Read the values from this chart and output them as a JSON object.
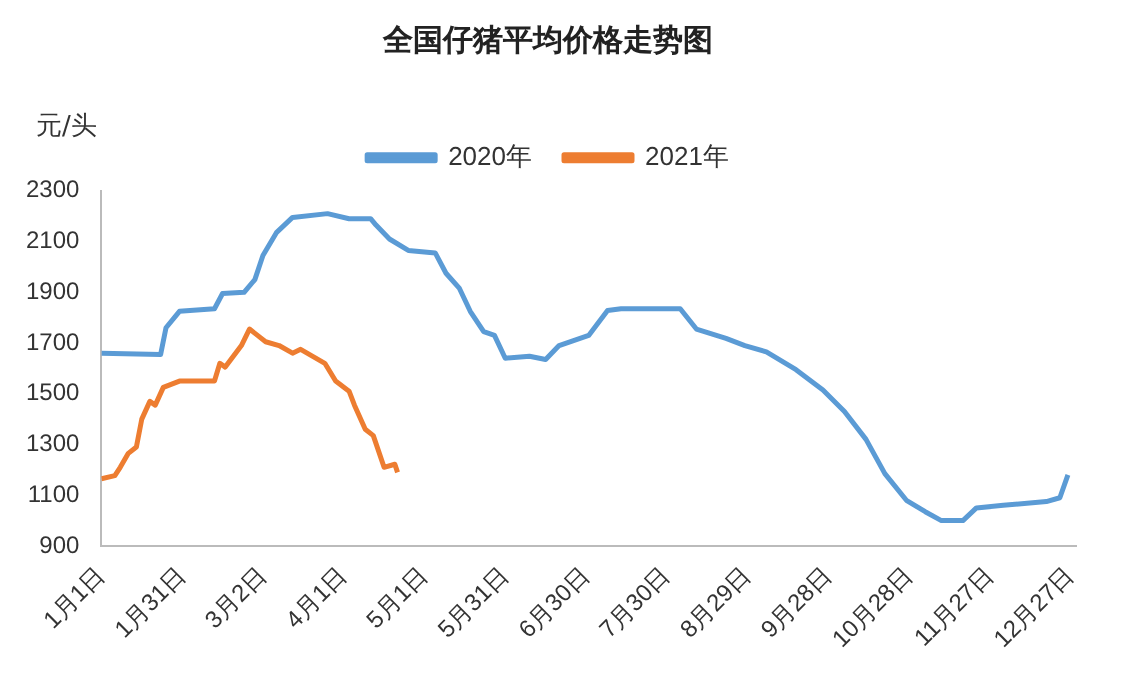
{
  "chart_data": {
    "type": "line",
    "title": "全国仔猪平均价格走势图",
    "ylabel": "元/头",
    "legend": "top",
    "grid": false,
    "marker": "none",
    "line_style": "solid",
    "xlim": [
      "--01-01",
      "--12-29"
    ],
    "xticks": [
      {
        "value": "--01-01",
        "label": "1月1日"
      },
      {
        "value": "--01-31",
        "label": "1月31日"
      },
      {
        "value": "--03-02",
        "label": "3月2日"
      },
      {
        "value": "--04-01",
        "label": "4月1日"
      },
      {
        "value": "--05-01",
        "label": "5月1日"
      },
      {
        "value": "--05-31",
        "label": "5月31日"
      },
      {
        "value": "--06-30",
        "label": "6月30日"
      },
      {
        "value": "--07-30",
        "label": "7月30日"
      },
      {
        "value": "--08-29",
        "label": "8月29日"
      },
      {
        "value": "--09-28",
        "label": "9月28日"
      },
      {
        "value": "--10-28",
        "label": "10月28日"
      },
      {
        "value": "--11-27",
        "label": "11月27日"
      },
      {
        "value": "--12-27",
        "label": "12月27日"
      }
    ],
    "ylim": [
      900,
      2300
    ],
    "yticks": [
      900,
      1100,
      1300,
      1500,
      1700,
      1900,
      2100,
      2300
    ],
    "series": [
      {
        "name": "2020年",
        "color": "#5b9bd5",
        "x": [
          "--01-01",
          "--01-23",
          "--01-25",
          "--01-30",
          "--02-12",
          "--02-15",
          "--02-23",
          "--02-27",
          "--03-02",
          "--03-07",
          "--03-13",
          "--03-26",
          "--04-03",
          "--04-11",
          "--04-13",
          "--04-18",
          "--04-25",
          "--05-05",
          "--05-09",
          "--05-14",
          "--05-18",
          "--05-23",
          "--05-27",
          "--05-31",
          "--06-09",
          "--06-15",
          "--06-20",
          "--07-01",
          "--07-08",
          "--07-13",
          "--08-04",
          "--08-10",
          "--08-21",
          "--08-28",
          "--09-05",
          "--09-16",
          "--09-26",
          "--10-04",
          "--10-12",
          "--10-19",
          "--10-27",
          "--11-03",
          "--11-09",
          "--11-17",
          "--11-22",
          "--12-02",
          "--12-18",
          "--12-23",
          "--12-26"
        ],
        "values": [
          1660,
          1655,
          1760,
          1825,
          1835,
          1895,
          1900,
          1950,
          2045,
          2135,
          2195,
          2210,
          2190,
          2190,
          2165,
          2110,
          2065,
          2055,
          1975,
          1915,
          1825,
          1745,
          1730,
          1640,
          1648,
          1635,
          1690,
          1730,
          1828,
          1835,
          1835,
          1755,
          1718,
          1690,
          1665,
          1595,
          1515,
          1430,
          1320,
          1185,
          1080,
          1035,
          1000,
          1000,
          1050,
          1060,
          1075,
          1090,
          1180
        ]
      },
      {
        "name": "2021年",
        "color": "#ed7d31",
        "x": [
          "--01-01",
          "--01-06",
          "--01-08",
          "--01-11",
          "--01-14",
          "--01-16",
          "--01-19",
          "--01-21",
          "--01-24",
          "--01-30",
          "--02-12",
          "--02-14",
          "--02-16",
          "--02-22",
          "--02-25",
          "--02-28",
          "--03-03",
          "--03-08",
          "--03-13",
          "--03-16",
          "--03-25",
          "--03-29",
          "--04-03",
          "--04-05",
          "--04-09",
          "--04-12",
          "--04-16",
          "--04-20",
          "--04-21"
        ],
        "values": [
          1165,
          1177,
          1210,
          1265,
          1290,
          1400,
          1470,
          1455,
          1525,
          1550,
          1550,
          1620,
          1605,
          1690,
          1755,
          1730,
          1705,
          1690,
          1660,
          1675,
          1620,
          1550,
          1510,
          1455,
          1360,
          1335,
          1210,
          1222,
          1190
        ]
      }
    ]
  }
}
